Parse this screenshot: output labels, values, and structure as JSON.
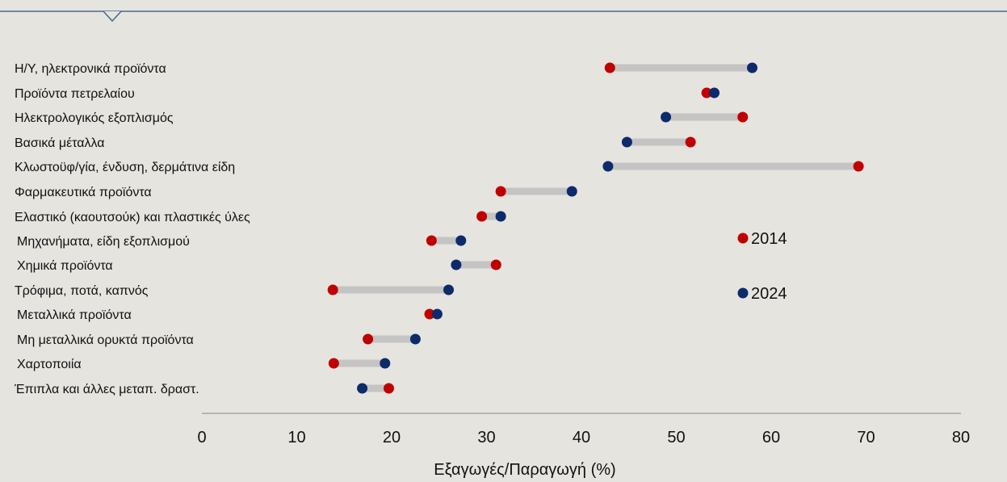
{
  "chart_data": {
    "type": "dumbbell",
    "xlabel": "Εξαγωγές/Παραγωγή (%)",
    "xlim": [
      0,
      80
    ],
    "xticks": [
      "0",
      "10",
      "20",
      "30",
      "40",
      "50",
      "60",
      "70",
      "80"
    ],
    "categories": [
      "Η/Υ, ηλεκτρονικά προϊόντα",
      "Προϊόντα πετρελαίου",
      "Ηλεκτρολογικός εξοπλισμός",
      "Βασικά μέταλλα",
      "Κλωστοϋφ/γία, ένδυση, δερμάτινα είδη",
      "Φαρμακευτικά προϊόντα",
      "Ελαστικό (καουτσούκ) και πλαστικές ύλες",
      "Μηχανήματα, είδη εξοπλισμού",
      "Χημικά προϊόντα",
      "Τρόφιμα, ποτά, καπνός",
      "Μεταλλικά προϊόντα",
      "Μη μεταλλικά ορυκτά προϊόντα",
      "Χαρτοποιία",
      "Έπιπλα και άλλες μεταπ. δραστ."
    ],
    "series": [
      {
        "name": "2014",
        "color": "#c00000",
        "values": [
          43.0,
          53.2,
          57.0,
          51.5,
          69.2,
          31.5,
          29.5,
          24.2,
          31.0,
          13.8,
          24.0,
          17.5,
          13.9,
          19.7
        ]
      },
      {
        "name": "2024",
        "color": "#0d2a6b",
        "values": [
          58.0,
          54.0,
          48.9,
          44.8,
          42.8,
          39.0,
          31.5,
          27.3,
          26.8,
          26.0,
          24.8,
          22.5,
          19.3,
          16.9
        ]
      }
    ],
    "connector_color": "#c4c4c4",
    "legend": "right",
    "grid": false
  }
}
